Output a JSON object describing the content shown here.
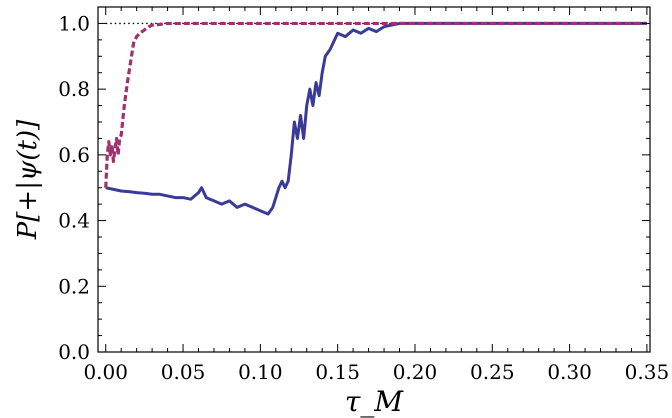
{
  "chart_data": {
    "type": "line",
    "xlabel": "τ_M",
    "ylabel": "P[+|ψ(t)]",
    "xlim": [
      -0.005,
      0.352
    ],
    "ylim": [
      0.0,
      1.05
    ],
    "x_ticks": [
      0.0,
      0.05,
      0.1,
      0.15,
      0.2,
      0.25,
      0.3,
      0.35
    ],
    "y_ticks": [
      0.0,
      0.2,
      0.4,
      0.6,
      0.8,
      1.0
    ],
    "x_tick_labels": [
      "0.00",
      "0.05",
      "0.10",
      "0.15",
      "0.20",
      "0.25",
      "0.30",
      "0.35"
    ],
    "y_tick_labels": [
      "0.0",
      "0.2",
      "0.4",
      "0.6",
      "0.8",
      "1.0"
    ],
    "grid": false,
    "colors": {
      "solid": "#3a3a99",
      "dashed": "#a0306e",
      "reference": "#000000"
    },
    "series": [
      {
        "style": "solid",
        "x": [
          0.0,
          0.005,
          0.01,
          0.015,
          0.02,
          0.025,
          0.03,
          0.035,
          0.04,
          0.045,
          0.05,
          0.055,
          0.06,
          0.062,
          0.065,
          0.07,
          0.075,
          0.08,
          0.085,
          0.09,
          0.095,
          0.1,
          0.105,
          0.108,
          0.11,
          0.112,
          0.114,
          0.116,
          0.118,
          0.12,
          0.122,
          0.124,
          0.126,
          0.128,
          0.13,
          0.132,
          0.134,
          0.136,
          0.138,
          0.14,
          0.142,
          0.145,
          0.148,
          0.15,
          0.155,
          0.16,
          0.165,
          0.17,
          0.175,
          0.18,
          0.185,
          0.19,
          0.2,
          0.25,
          0.3,
          0.35
        ],
        "y": [
          0.5,
          0.495,
          0.49,
          0.488,
          0.485,
          0.483,
          0.48,
          0.48,
          0.475,
          0.47,
          0.47,
          0.465,
          0.485,
          0.5,
          0.47,
          0.46,
          0.45,
          0.46,
          0.44,
          0.45,
          0.44,
          0.43,
          0.42,
          0.44,
          0.47,
          0.5,
          0.52,
          0.5,
          0.52,
          0.6,
          0.7,
          0.65,
          0.72,
          0.65,
          0.75,
          0.8,
          0.75,
          0.82,
          0.78,
          0.85,
          0.9,
          0.92,
          0.95,
          0.97,
          0.96,
          0.98,
          0.97,
          0.985,
          0.975,
          0.99,
          0.995,
          1.0,
          1.0,
          1.0,
          1.0,
          1.0
        ]
      },
      {
        "style": "dashed",
        "x": [
          0.0,
          0.001,
          0.002,
          0.003,
          0.004,
          0.005,
          0.006,
          0.007,
          0.008,
          0.009,
          0.01,
          0.012,
          0.014,
          0.016,
          0.018,
          0.02,
          0.022,
          0.025,
          0.028,
          0.03,
          0.035,
          0.04,
          0.05,
          0.1,
          0.2,
          0.35
        ],
        "y": [
          0.5,
          0.6,
          0.64,
          0.6,
          0.63,
          0.58,
          0.62,
          0.65,
          0.6,
          0.65,
          0.66,
          0.75,
          0.82,
          0.88,
          0.94,
          0.96,
          0.97,
          0.98,
          0.99,
          0.995,
          0.997,
          1.0,
          1.0,
          1.0,
          1.0,
          1.0
        ]
      },
      {
        "style": "dotted",
        "x": [
          0.0,
          0.35
        ],
        "y": [
          1.0,
          1.0
        ]
      }
    ]
  }
}
